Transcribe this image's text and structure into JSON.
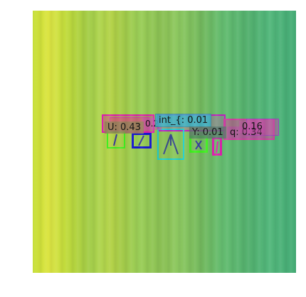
{
  "image": {
    "colors": {
      "field_yellow": "#dbe43a",
      "field_green": "#47b27a",
      "magenta": "#e020b0",
      "pink": "#d040a0",
      "blue": "#1818d0",
      "lime": "#40ee20",
      "cyan": "#20d0d0",
      "purple": "#a040c0"
    }
  },
  "labels": {
    "int_label": "int_{: 0.01",
    "u_label": "U: 0.43",
    "y_label": "Y: 0.01",
    "q_label": "q: 0.34",
    "partial_right": "0.16",
    "partial_mid": "0.2"
  }
}
